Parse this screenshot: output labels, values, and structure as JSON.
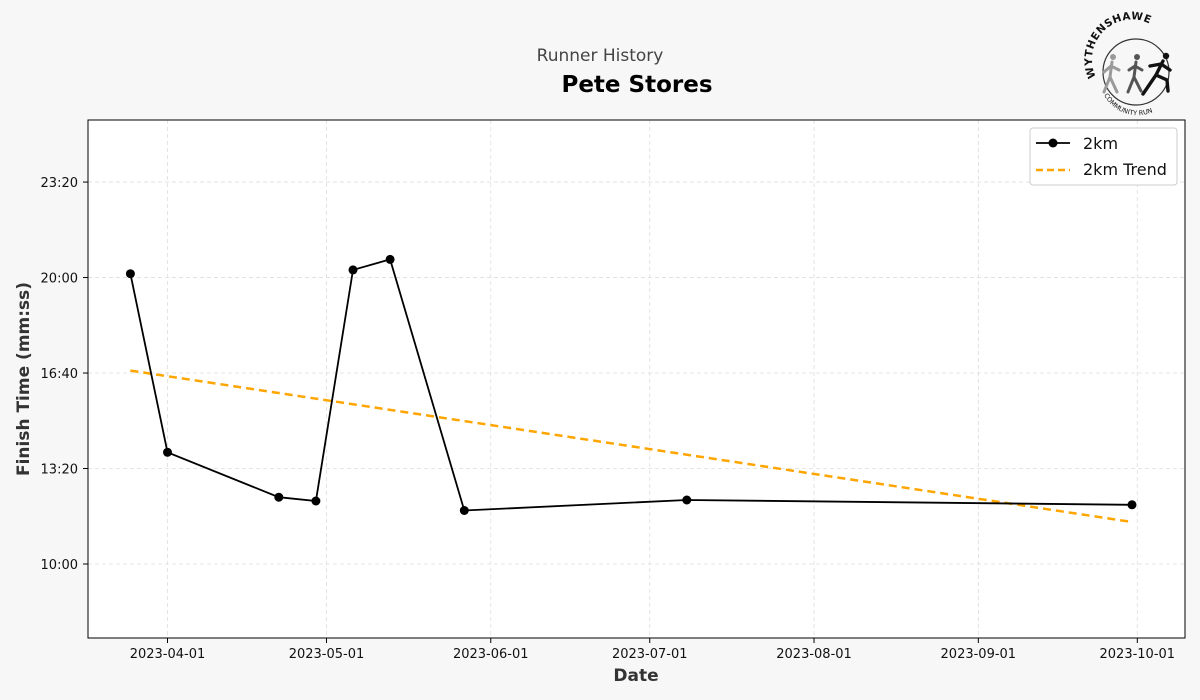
{
  "header": {
    "subtitle": "Runner History",
    "title": "Pete Stores"
  },
  "logo": {
    "top_text": "WYTHENSHAWE",
    "bottom_text": "COMMUNITY RUN"
  },
  "colors": {
    "series": "#000000",
    "trend": "#ffa500",
    "background": "#f7f7f7",
    "plot_background": "#ffffff",
    "grid": "#dddddd"
  },
  "chart_data": {
    "type": "line",
    "xlabel": "Date",
    "ylabel": "Finish Time (mm:ss)",
    "x_axis_type": "date",
    "xlim": [
      "2023-03-17",
      "2023-10-10"
    ],
    "ylim_seconds": [
      445,
      1530
    ],
    "grid": true,
    "legend_position": "top-right",
    "x_ticks": [
      {
        "date": "2023-04-01",
        "label": "2023-04-01"
      },
      {
        "date": "2023-05-01",
        "label": "2023-05-01"
      },
      {
        "date": "2023-06-01",
        "label": "2023-06-01"
      },
      {
        "date": "2023-07-01",
        "label": "2023-07-01"
      },
      {
        "date": "2023-08-01",
        "label": "2023-08-01"
      },
      {
        "date": "2023-09-01",
        "label": "2023-09-01"
      },
      {
        "date": "2023-10-01",
        "label": "2023-10-01"
      }
    ],
    "y_ticks": [
      {
        "seconds": 600,
        "label": "10:00"
      },
      {
        "seconds": 800,
        "label": "13:20"
      },
      {
        "seconds": 1000,
        "label": "16:40"
      },
      {
        "seconds": 1200,
        "label": "20:00"
      },
      {
        "seconds": 1400,
        "label": "23:20"
      }
    ],
    "series": [
      {
        "name": "2km",
        "style": "solid-markers",
        "points": [
          {
            "date": "2023-03-25",
            "seconds": 1208
          },
          {
            "date": "2023-04-01",
            "seconds": 834
          },
          {
            "date": "2023-04-22",
            "seconds": 740
          },
          {
            "date": "2023-04-29",
            "seconds": 732
          },
          {
            "date": "2023-05-06",
            "seconds": 1216
          },
          {
            "date": "2023-05-13",
            "seconds": 1238
          },
          {
            "date": "2023-05-27",
            "seconds": 712
          },
          {
            "date": "2023-07-08",
            "seconds": 734
          },
          {
            "date": "2023-09-30",
            "seconds": 724
          }
        ]
      },
      {
        "name": "2km Trend",
        "style": "dashed",
        "points": [
          {
            "date": "2023-03-25",
            "seconds": 1005
          },
          {
            "date": "2023-09-30",
            "seconds": 688
          }
        ]
      }
    ]
  }
}
